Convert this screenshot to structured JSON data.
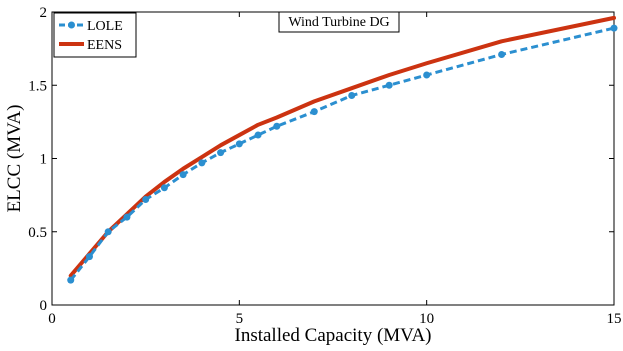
{
  "chart_data": {
    "type": "line",
    "title": "",
    "annotation": "Wind Turbine DG",
    "xlabel": "Installed Capacity (MVA)",
    "ylabel": "ELCC (MVA)",
    "xlim": [
      0,
      15
    ],
    "ylim": [
      0,
      2
    ],
    "xticks": [
      0,
      5,
      10,
      15
    ],
    "yticks": [
      0,
      0.5,
      1,
      1.5,
      2
    ],
    "xtick_labels": [
      "0",
      "5",
      "10",
      "15"
    ],
    "ytick_labels": [
      "0",
      "0.5",
      "1",
      "1.5",
      "2"
    ],
    "grid": false,
    "legend_position": "top-left",
    "series": [
      {
        "name": "LOLE",
        "color": "#2b8fd0",
        "style": "dashed-with-markers",
        "x": [
          0.5,
          1,
          1.5,
          2,
          2.5,
          3,
          3.5,
          4,
          4.5,
          5,
          5.5,
          6,
          7,
          8,
          9,
          10,
          12,
          15
        ],
        "y": [
          0.17,
          0.33,
          0.5,
          0.6,
          0.72,
          0.8,
          0.89,
          0.97,
          1.04,
          1.1,
          1.16,
          1.22,
          1.32,
          1.43,
          1.5,
          1.57,
          1.71,
          1.89
        ]
      },
      {
        "name": "EENS",
        "color": "#cc3311",
        "style": "solid",
        "x": [
          0.5,
          1,
          1.5,
          2,
          2.5,
          3,
          3.5,
          4,
          4.5,
          5,
          5.5,
          6,
          7,
          8,
          9,
          10,
          12,
          15
        ],
        "y": [
          0.2,
          0.35,
          0.5,
          0.62,
          0.74,
          0.84,
          0.93,
          1.01,
          1.09,
          1.16,
          1.23,
          1.28,
          1.39,
          1.48,
          1.57,
          1.65,
          1.8,
          1.96
        ]
      }
    ]
  }
}
